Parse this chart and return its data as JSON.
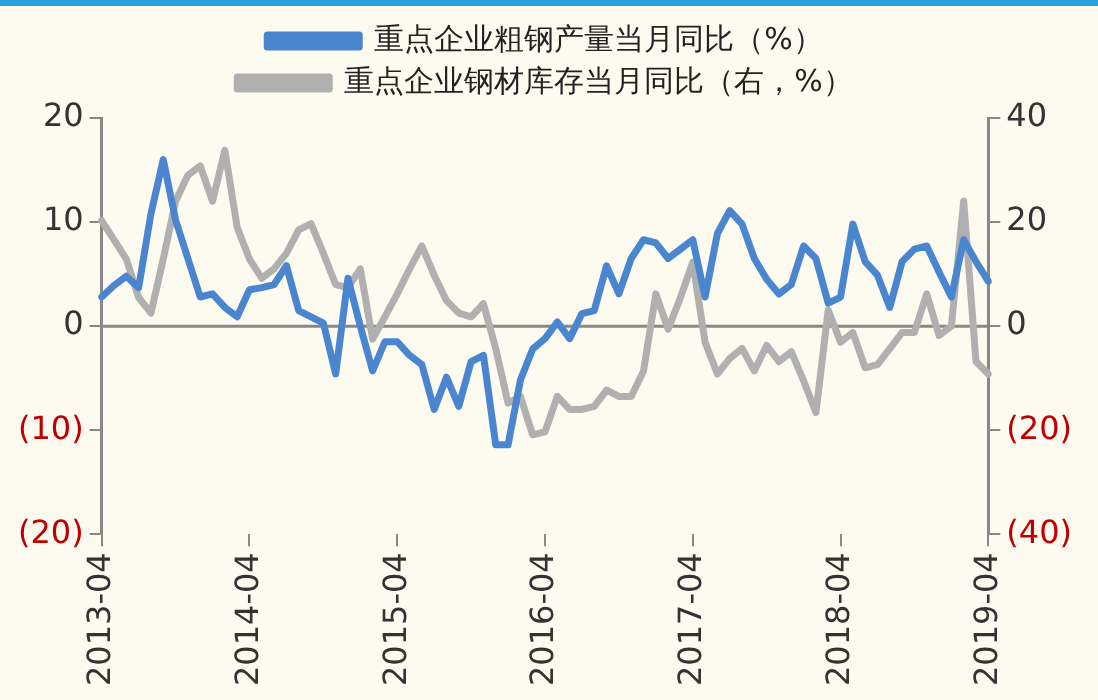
{
  "chart_data": {
    "type": "line",
    "categories": [
      "2013-04",
      null,
      null,
      null,
      null,
      null,
      null,
      null,
      null,
      null,
      null,
      null,
      "2014-04",
      null,
      null,
      null,
      null,
      null,
      null,
      null,
      null,
      null,
      null,
      null,
      "2015-04",
      null,
      null,
      null,
      null,
      null,
      null,
      null,
      null,
      null,
      null,
      null,
      "2016-04",
      null,
      null,
      null,
      null,
      null,
      null,
      null,
      null,
      null,
      null,
      null,
      "2017-04",
      null,
      null,
      null,
      null,
      null,
      null,
      null,
      null,
      null,
      null,
      null,
      "2018-04",
      null,
      null,
      null,
      null,
      null,
      null,
      null,
      null,
      null,
      null,
      null,
      "2019-04"
    ],
    "series": [
      {
        "name": "重点企业粗钢产量当月同比（%）",
        "color": "#4a86d0",
        "values": [
          2.8,
          3.9,
          4.8,
          3.7,
          10.8,
          16,
          10.2,
          6.5,
          2.8,
          3.1,
          1.8,
          0.9,
          3.5,
          3.7,
          4,
          5.8,
          1.5,
          0.9,
          0.3,
          -4.6,
          4.6,
          0,
          -4.3,
          -1.5,
          -1.5,
          -2.8,
          -3.7,
          -8,
          -4.9,
          -7.7,
          -3.4,
          -2.8,
          -11.4,
          -11.4,
          -5.2,
          -2.2,
          -1.2,
          0.4,
          -1.2,
          1.2,
          1.5,
          5.8,
          3.1,
          6.5,
          8.3,
          8,
          6.5,
          7.4,
          8.3,
          2.8,
          8.9,
          11.1,
          9.8,
          6.5,
          4.5,
          3.1,
          4,
          7.7,
          6.5,
          2.2,
          2.8,
          9.8,
          6.2,
          4.9,
          1.8,
          6.2,
          7.4,
          7.7,
          5.2,
          2.8,
          8.3,
          6.2,
          4.3
        ]
      },
      {
        "name": "重点企业钢材库存当月同比（右，%）",
        "color": "#b0b0b0",
        "axis": "y2",
        "values": [
          20.3,
          16.6,
          12.9,
          5.5,
          2.5,
          12.9,
          24,
          29,
          30.8,
          24,
          33.8,
          19,
          12.9,
          9.2,
          11,
          14,
          18.5,
          19.7,
          14,
          8,
          7.4,
          11,
          -2.5,
          1.8,
          6.2,
          11,
          15.4,
          9.8,
          4.9,
          2.5,
          1.8,
          4.3,
          -4.3,
          -14.8,
          -13.5,
          -20.9,
          -20.3,
          -13.5,
          -16,
          -16,
          -15.4,
          -12.3,
          -13.5,
          -13.5,
          -8.6,
          6.2,
          -0.6,
          5.5,
          12.3,
          -3.1,
          -9.2,
          -6.2,
          -4.3,
          -8.6,
          -3.7,
          -6.8,
          -4.9,
          -10.5,
          -16.6,
          3.1,
          -3.1,
          -1.2,
          -8,
          -7.4,
          -4.3,
          -1.2,
          -1.2,
          6.2,
          -1.8,
          0,
          24,
          -6.8,
          -9.2
        ]
      }
    ],
    "ylim": [
      -20,
      20
    ],
    "yticks": [
      {
        "value": -20,
        "label": "(20)"
      },
      {
        "value": -10,
        "label": "(10)"
      },
      0,
      10,
      20
    ],
    "y2lim": [
      -40,
      40
    ],
    "y2ticks": [
      {
        "value": -40,
        "label": "(40)"
      },
      {
        "value": -20,
        "label": "(20)"
      },
      0,
      20,
      40
    ],
    "legend": "top",
    "marker": "none",
    "line_style": "solid"
  }
}
